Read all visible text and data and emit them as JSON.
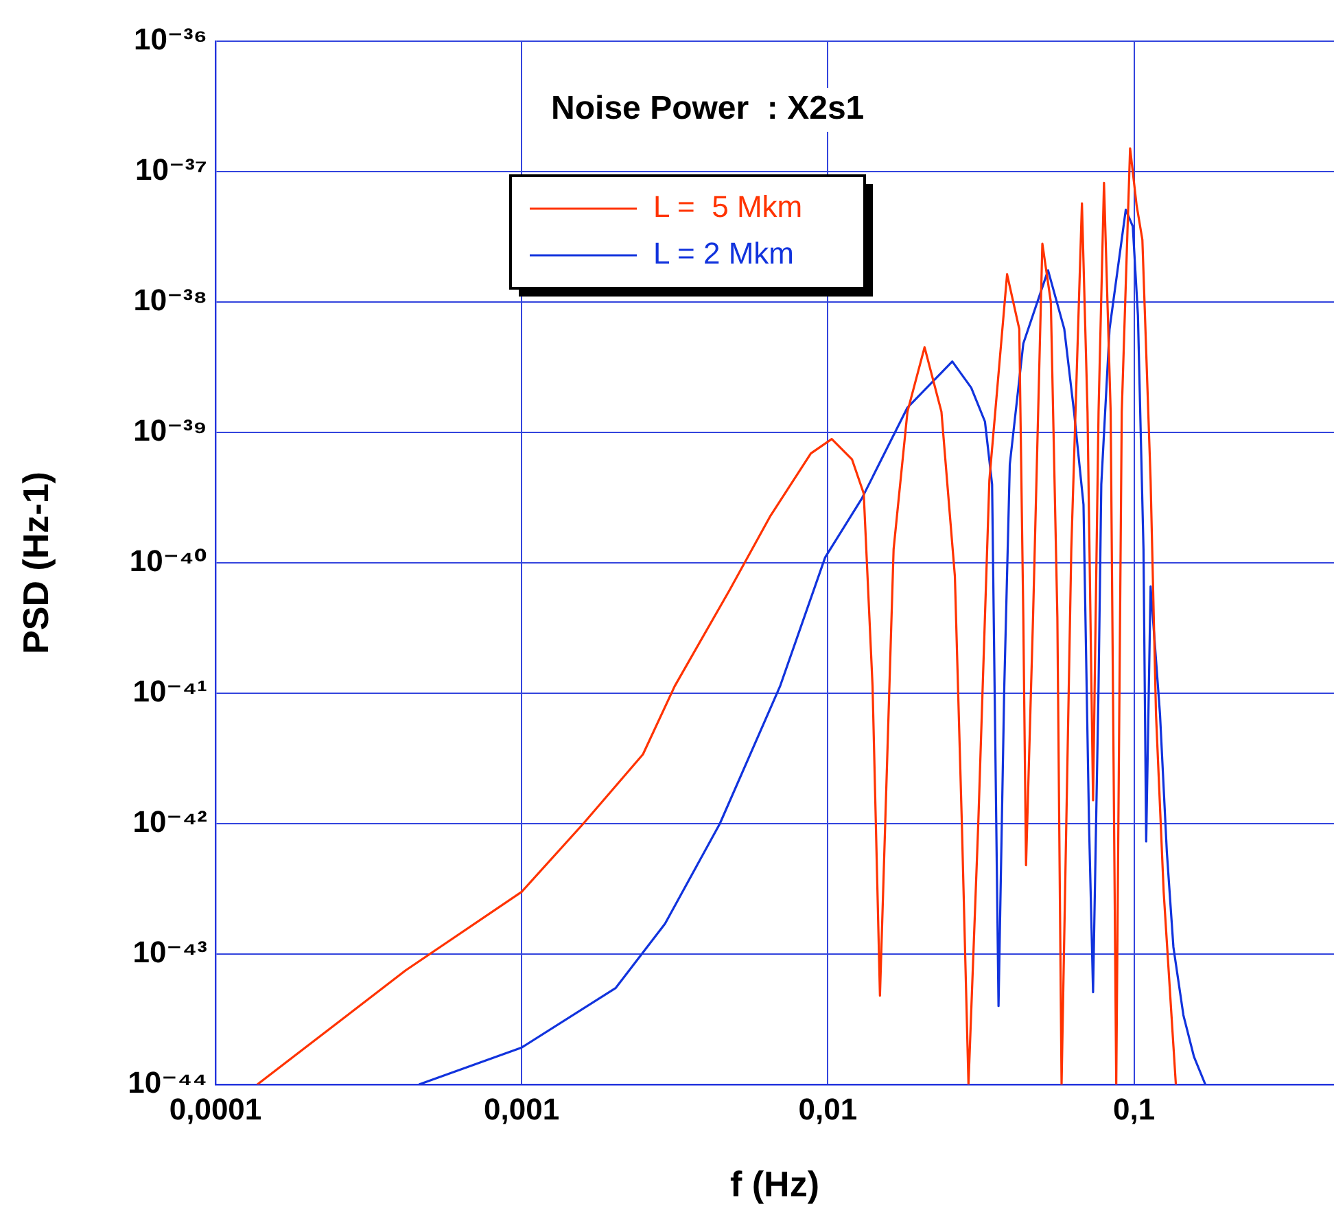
{
  "chart_data": {
    "type": "line",
    "title": "Noise Power  : X2s1",
    "xlabel": "f (Hz)",
    "ylabel": "PSD (Hz-1)",
    "log": "xy",
    "grid": true,
    "legend": "top left",
    "xlim": [
      0.0001,
      0.45
    ],
    "xticks": [
      {
        "value": 0.0001,
        "label": "0,0001"
      },
      {
        "value": 0.001,
        "label": "0,001"
      },
      {
        "value": 0.01,
        "label": "0,01"
      },
      {
        "value": 0.1,
        "label": "0,1"
      }
    ],
    "ylim": [
      1e-44,
      1e-36
    ],
    "yticks": [
      {
        "value": 1e-44,
        "label": "10⁻⁴⁴"
      },
      {
        "value": 1e-43,
        "label": "10⁻⁴³"
      },
      {
        "value": 1e-42,
        "label": "10⁻⁴²"
      },
      {
        "value": 1e-41,
        "label": "10⁻⁴¹"
      },
      {
        "value": 1e-40,
        "label": "10⁻⁴⁰"
      },
      {
        "value": 1e-39,
        "label": "10⁻³⁹"
      },
      {
        "value": 1e-38,
        "label": "10⁻³⁸"
      },
      {
        "value": 1e-37,
        "label": "10⁻³⁷"
      },
      {
        "value": 1e-36,
        "label": "10⁻³⁶"
      }
    ],
    "series": [
      {
        "name": "L =  5 Mkm",
        "color": "#ff3300",
        "x": [
          0.000137,
          0.000418,
          0.001,
          0.00159,
          0.00249,
          0.00316,
          0.00478,
          0.0065,
          0.0088,
          0.0103,
          0.012,
          0.0131,
          0.014,
          0.0148,
          0.0164,
          0.0182,
          0.0207,
          0.0235,
          0.026,
          0.0274,
          0.0288,
          0.031,
          0.0337,
          0.0385,
          0.0422,
          0.0435,
          0.0444,
          0.0468,
          0.0502,
          0.0535,
          0.0562,
          0.058,
          0.0624,
          0.0676,
          0.0705,
          0.0735,
          0.0766,
          0.0798,
          0.0839,
          0.0875,
          0.0912,
          0.0971,
          0.102,
          0.1065,
          0.1133,
          0.118,
          0.125,
          0.137
        ],
        "values": [
          1e-44,
          7.5e-44,
          3e-43,
          1e-42,
          3.4e-42,
          1.13e-41,
          6.2e-41,
          2.3e-40,
          6.9e-40,
          8.9e-40,
          6.2e-40,
          3.4e-40,
          1.13e-41,
          4.8e-44,
          1.27e-40,
          1.44e-39,
          4.5e-39,
          1.44e-39,
          7.9e-41,
          1e-42,
          1e-44,
          1e-42,
          4.3e-40,
          1.63e-38,
          6.2e-39,
          3.8e-41,
          4.8e-43,
          3.8e-41,
          2.8e-38,
          1e-38,
          3.8e-41,
          1e-44,
          1.27e-40,
          5.7e-38,
          1.44e-39,
          1.51e-42,
          1.44e-39,
          8.2e-38,
          1.44e-39,
          1e-44,
          1.44e-39,
          1.51e-37,
          5.5e-38,
          3e-38,
          4.3e-40,
          6.9e-42,
          3e-43,
          1e-44
        ]
      },
      {
        "name": "L = 2 Mkm",
        "color": "#1133dd",
        "x": [
          0.000462,
          0.001,
          0.00203,
          0.00294,
          0.00444,
          0.00698,
          0.0098,
          0.0129,
          0.0182,
          0.0255,
          0.0294,
          0.0326,
          0.0344,
          0.0361,
          0.0377,
          0.0393,
          0.0435,
          0.0524,
          0.0592,
          0.0637,
          0.0684,
          0.0713,
          0.0735,
          0.0766,
          0.0782,
          0.0832,
          0.094,
          0.0991,
          0.103,
          0.1074,
          0.1096,
          0.1133,
          0.1216,
          0.128,
          0.1345,
          0.145,
          0.157,
          0.171
        ],
        "values": [
          1e-44,
          1.92e-44,
          5.5e-44,
          1.71e-43,
          1e-42,
          1.13e-41,
          1.1e-40,
          3.1e-40,
          1.55e-39,
          3.5e-39,
          2.2e-39,
          1.21e-39,
          4e-40,
          4e-44,
          1.13e-41,
          5.7e-40,
          4.8e-39,
          1.75e-38,
          6.2e-39,
          1.44e-39,
          2.8e-40,
          1e-42,
          5.1e-44,
          1.13e-41,
          4e-40,
          6.2e-39,
          5.1e-38,
          3.8e-38,
          7.9e-39,
          1.27e-40,
          7.3e-43,
          6.6e-41,
          6.9e-42,
          6.1e-43,
          1.13e-43,
          3.4e-44,
          1.63e-44,
          1e-44
        ]
      }
    ]
  }
}
